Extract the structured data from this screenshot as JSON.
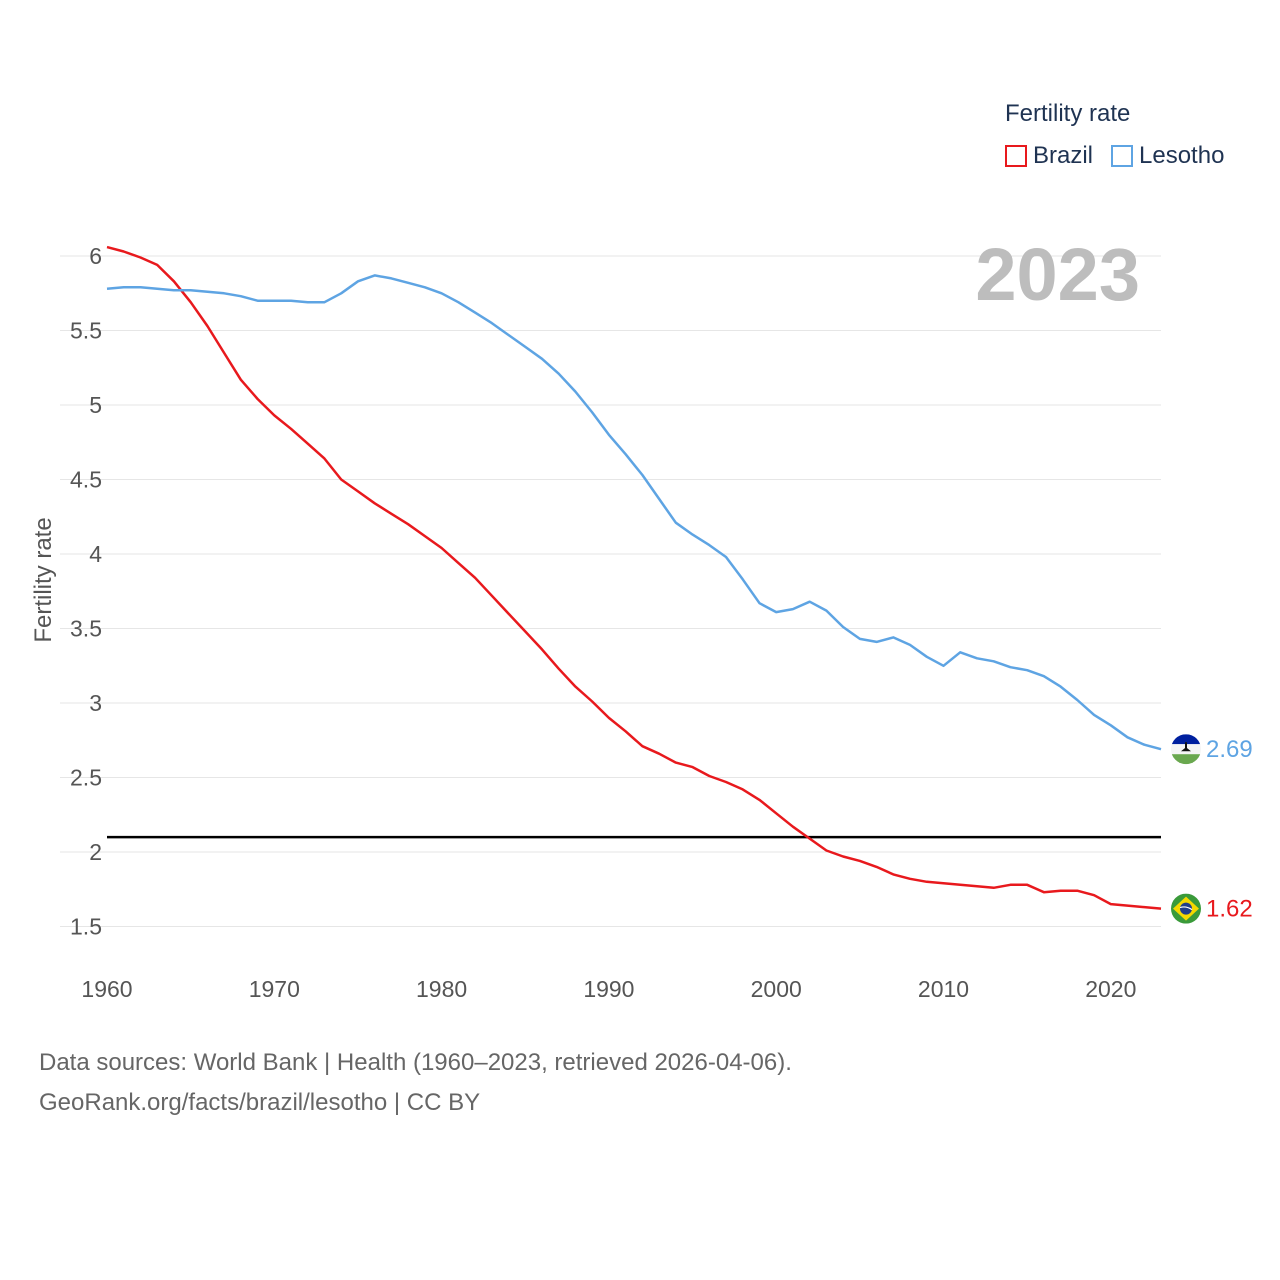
{
  "legend": {
    "title": "Fertility rate",
    "items": [
      {
        "label": "Brazil",
        "color": "#e8191d"
      },
      {
        "label": "Lesotho",
        "color": "#5ea4e3"
      }
    ]
  },
  "year_label": "2023",
  "source": {
    "line1": "Data sources: World Bank | Health (1960–2023, retrieved 2026-04-06).",
    "line2": "GeoRank.org/facts/brazil/lesotho | CC BY"
  },
  "chart_data": {
    "type": "line",
    "title": "Fertility rate",
    "xlabel": "",
    "ylabel": "Fertility rate",
    "xlim": [
      1960,
      2023
    ],
    "ylim": [
      1.5,
      6
    ],
    "x_ticks": [
      1960,
      1970,
      1980,
      1990,
      2000,
      2010,
      2020
    ],
    "y_ticks": [
      1.5,
      2,
      2.5,
      3,
      3.5,
      4,
      4.5,
      5,
      5.5,
      6
    ],
    "reference_line": 2.1,
    "x": [
      1960,
      1961,
      1962,
      1963,
      1964,
      1965,
      1966,
      1967,
      1968,
      1969,
      1970,
      1971,
      1972,
      1973,
      1974,
      1975,
      1976,
      1977,
      1978,
      1979,
      1980,
      1981,
      1982,
      1983,
      1984,
      1985,
      1986,
      1987,
      1988,
      1989,
      1990,
      1991,
      1992,
      1993,
      1994,
      1995,
      1996,
      1997,
      1998,
      1999,
      2000,
      2001,
      2002,
      2003,
      2004,
      2005,
      2006,
      2007,
      2008,
      2009,
      2010,
      2011,
      2012,
      2013,
      2014,
      2015,
      2016,
      2017,
      2018,
      2019,
      2020,
      2021,
      2022,
      2023
    ],
    "series": [
      {
        "name": "Brazil",
        "color": "#e8191d",
        "end_label": "1.62",
        "values": [
          6.06,
          6.03,
          5.99,
          5.94,
          5.83,
          5.69,
          5.53,
          5.35,
          5.17,
          5.04,
          4.93,
          4.84,
          4.74,
          4.64,
          4.5,
          4.42,
          4.34,
          4.27,
          4.2,
          4.12,
          4.04,
          3.94,
          3.84,
          3.72,
          3.6,
          3.48,
          3.36,
          3.23,
          3.11,
          3.01,
          2.9,
          2.81,
          2.71,
          2.66,
          2.6,
          2.57,
          2.51,
          2.47,
          2.42,
          2.35,
          2.26,
          2.17,
          2.09,
          2.01,
          1.97,
          1.94,
          1.9,
          1.85,
          1.82,
          1.8,
          1.79,
          1.78,
          1.77,
          1.76,
          1.78,
          1.78,
          1.73,
          1.74,
          1.74,
          1.71,
          1.65,
          1.64,
          1.63,
          1.62
        ]
      },
      {
        "name": "Lesotho",
        "color": "#5ea4e3",
        "end_label": "2.69",
        "values": [
          5.78,
          5.79,
          5.79,
          5.78,
          5.77,
          5.77,
          5.76,
          5.75,
          5.73,
          5.7,
          5.7,
          5.7,
          5.69,
          5.69,
          5.75,
          5.83,
          5.87,
          5.85,
          5.82,
          5.79,
          5.75,
          5.69,
          5.62,
          5.55,
          5.47,
          5.39,
          5.31,
          5.21,
          5.09,
          4.95,
          4.8,
          4.67,
          4.53,
          4.37,
          4.21,
          4.13,
          4.06,
          3.98,
          3.83,
          3.67,
          3.61,
          3.63,
          3.68,
          3.62,
          3.51,
          3.43,
          3.41,
          3.44,
          3.39,
          3.31,
          3.25,
          3.34,
          3.3,
          3.28,
          3.24,
          3.22,
          3.18,
          3.11,
          3.02,
          2.92,
          2.85,
          2.77,
          2.72,
          2.69
        ]
      }
    ]
  }
}
